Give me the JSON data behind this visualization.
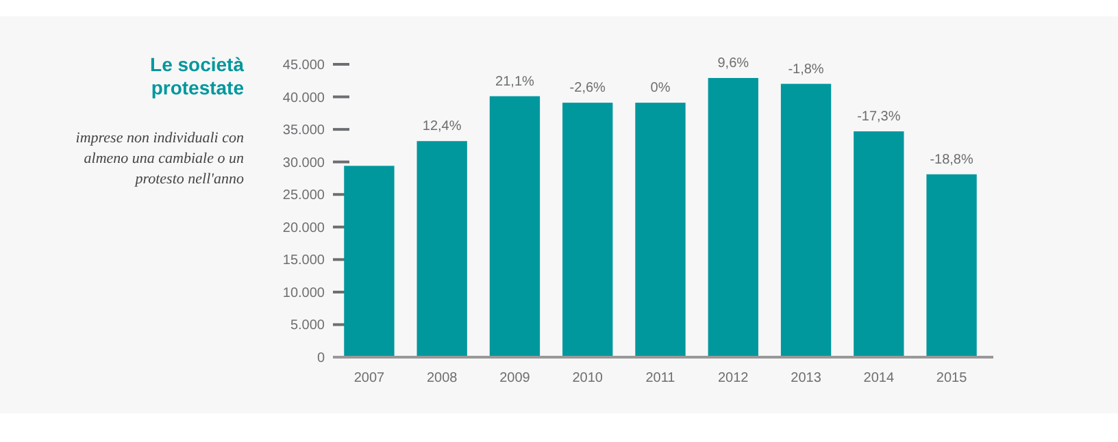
{
  "chart_data": {
    "type": "bar",
    "title": "Le società protestate",
    "subtitle": "imprese non individuali con almeno una cambiale o un protesto nell'anno",
    "categories": [
      "2007",
      "2008",
      "2009",
      "2010",
      "2011",
      "2012",
      "2013",
      "2014",
      "2015"
    ],
    "values": [
      29400,
      33200,
      40100,
      39100,
      39100,
      42900,
      42000,
      34700,
      28100
    ],
    "annotations": [
      {
        "text": "12,4%",
        "x": "2008",
        "y": 33200
      },
      {
        "text": "21,1%",
        "x": "2009",
        "y": 40100
      },
      {
        "text": "-2,6%",
        "x": "2010",
        "y": 39100
      },
      {
        "text": "0%",
        "x": "2011",
        "y": 39100
      },
      {
        "text": "9,6%",
        "x": "2012",
        "y": 42900
      },
      {
        "text": "-1,8%",
        "x": "2013",
        "y": 42000
      },
      {
        "text": "-17,3%",
        "x": "2014",
        "y": 34700
      },
      {
        "text": "-18,8%",
        "x": "2015",
        "y": 28100
      }
    ],
    "color": "#00979d",
    "ylim": [
      0,
      45000
    ],
    "yticks": [
      0,
      {
        "value": 5000,
        "label": "5.000"
      },
      {
        "value": 10000,
        "label": "10.000"
      },
      {
        "value": 15000,
        "label": "15.000"
      },
      {
        "value": 20000,
        "label": "20.000"
      },
      {
        "value": 25000,
        "label": "25.000"
      },
      {
        "value": 30000,
        "label": "30.000"
      },
      {
        "value": 35000,
        "label": "35.000"
      },
      {
        "value": 40000,
        "label": "40.000"
      },
      {
        "value": 45000,
        "label": "45.000"
      }
    ],
    "grid": false
  }
}
